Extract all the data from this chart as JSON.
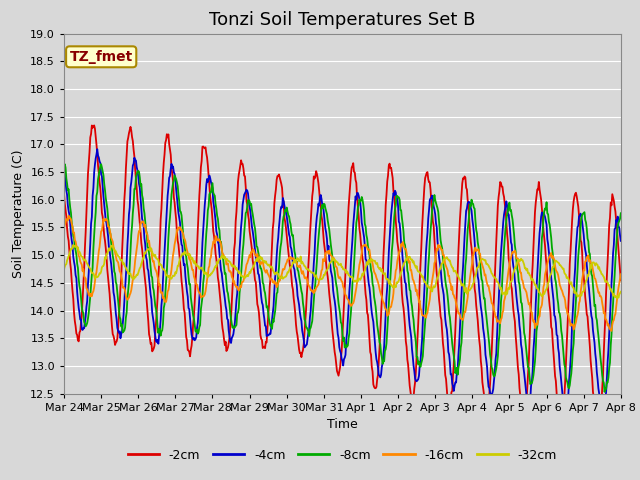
{
  "title": "Tonzi Soil Temperatures Set B",
  "xlabel": "Time",
  "ylabel": "Soil Temperature (C)",
  "xlim": [
    0,
    360
  ],
  "ylim": [
    12.5,
    19.0
  ],
  "yticks": [
    12.5,
    13.0,
    13.5,
    14.0,
    14.5,
    15.0,
    15.5,
    16.0,
    16.5,
    17.0,
    17.5,
    18.0,
    18.5,
    19.0
  ],
  "xtick_labels": [
    "Mar 24",
    "Mar 25",
    "Mar 26",
    "Mar 27",
    "Mar 28",
    "Mar 29",
    "Mar 30",
    "Mar 31",
    "Apr 1",
    "Apr 2",
    "Apr 3",
    "Apr 4",
    "Apr 5",
    "Apr 6",
    "Apr 7",
    "Apr 8"
  ],
  "xtick_positions": [
    0,
    24,
    48,
    72,
    96,
    120,
    144,
    168,
    192,
    216,
    240,
    264,
    288,
    312,
    336,
    360
  ],
  "annotation_text": "TZ_fmet",
  "series_colors": [
    "#dd0000",
    "#0000cc",
    "#00aa00",
    "#ff8800",
    "#cccc00"
  ],
  "series_labels": [
    "-2cm",
    "-4cm",
    "-8cm",
    "-16cm",
    "-32cm"
  ],
  "background_color": "#d8d8d8",
  "grid_color": "#ffffff",
  "title_fontsize": 13,
  "axis_fontsize": 9,
  "tick_fontsize": 8,
  "legend_fontsize": 9,
  "line_width": 1.3
}
